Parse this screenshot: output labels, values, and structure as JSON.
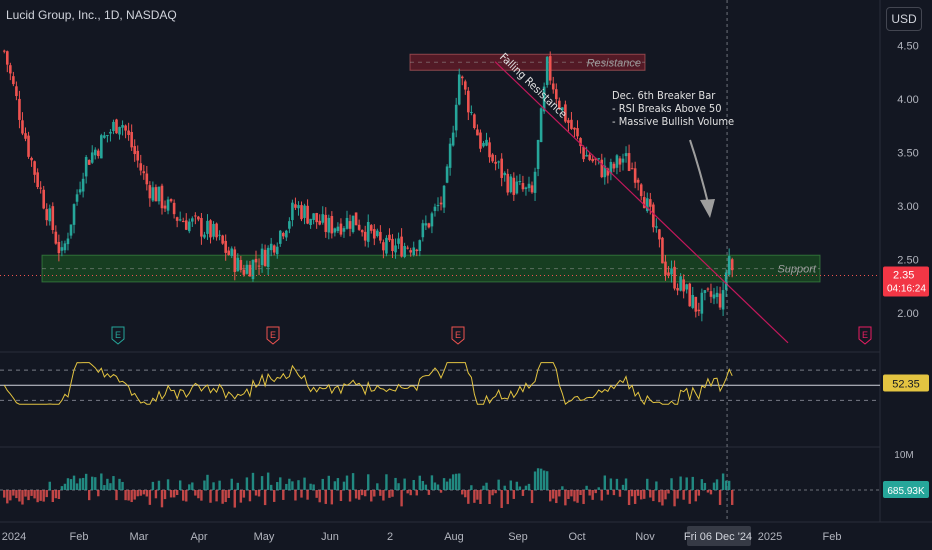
{
  "header": {
    "title": "Lucid Group, Inc., 1D, NASDAQ",
    "currency_button": "USD"
  },
  "colors": {
    "up": "#26a69a",
    "down": "#ef5350",
    "rsi": "#e3c441",
    "trend": "#c2185b",
    "support_fill": "#1b5e20",
    "resistance_fill": "#7f1d2a",
    "bg": "#131722"
  },
  "chart_data": {
    "type": "candlestick",
    "price_axis": {
      "ticks": [
        "4.50",
        "4.00",
        "3.50",
        "3.00",
        "2.50",
        "2.00"
      ],
      "ylim": [
        1.7,
        4.6
      ]
    },
    "last_price_label": "2.35",
    "countdown_label": "04:16:24",
    "rsi_value_label": "52.35",
    "volume_value_label": "685.93K",
    "volume_axis_label": "10M",
    "x_axis_labels": [
      "2024",
      "Feb",
      "Mar",
      "Apr",
      "May",
      "Jun",
      "2",
      "Aug",
      "Sep",
      "Oct",
      "Nov",
      "Fri 06 Dec '24",
      "2025",
      "Feb"
    ],
    "zones": [
      {
        "label": "Resistance",
        "low": 4.27,
        "high": 4.42
      },
      {
        "label": "Support",
        "low": 2.29,
        "high": 2.54
      }
    ],
    "trendline": {
      "label": "Falling Resistance",
      "from": [
        "Aug 19",
        4.35
      ],
      "to": [
        "Jan 2025",
        1.72
      ]
    },
    "annotation": [
      "Dec. 6th Breaker Bar",
      "- RSI Breaks Above 50",
      "- Massive Bullish Volume"
    ],
    "earnings_markers": [
      "E",
      "E",
      "E",
      "E"
    ],
    "price_keypoints": [
      {
        "date": "Jan 2",
        "close": 4.45
      },
      {
        "date": "Jan 15",
        "close": 3.4
      },
      {
        "date": "Jan 29",
        "close": 2.52
      },
      {
        "date": "Feb 9",
        "close": 3.4
      },
      {
        "date": "Feb 26",
        "close": 3.82
      },
      {
        "date": "Mar 8",
        "close": 3.2
      },
      {
        "date": "Mar 22",
        "close": 2.9
      },
      {
        "date": "Apr 8",
        "close": 2.75
      },
      {
        "date": "Apr 22",
        "close": 2.4
      },
      {
        "date": "May 3",
        "close": 2.55
      },
      {
        "date": "May 17",
        "close": 3.0
      },
      {
        "date": "May 31",
        "close": 2.8
      },
      {
        "date": "Jun 14",
        "close": 2.88
      },
      {
        "date": "Jun 28",
        "close": 2.6
      },
      {
        "date": "Jul 12",
        "close": 2.65
      },
      {
        "date": "Jul 26",
        "close": 3.1
      },
      {
        "date": "Aug 2",
        "close": 4.25
      },
      {
        "date": "Aug 12",
        "close": 3.6
      },
      {
        "date": "Aug 26",
        "close": 3.2
      },
      {
        "date": "Sep 6",
        "close": 3.1
      },
      {
        "date": "Sep 13",
        "close": 4.3
      },
      {
        "date": "Sep 20",
        "close": 3.9
      },
      {
        "date": "Sep 30",
        "close": 3.5
      },
      {
        "date": "Oct 11",
        "close": 3.3
      },
      {
        "date": "Oct 18",
        "close": 3.45
      },
      {
        "date": "Oct 25",
        "close": 3.3
      },
      {
        "date": "Nov 1",
        "close": 2.85
      },
      {
        "date": "Nov 8",
        "close": 2.4
      },
      {
        "date": "Nov 15",
        "close": 2.25
      },
      {
        "date": "Nov 22",
        "close": 2.05
      },
      {
        "date": "Nov 29",
        "close": 2.15
      },
      {
        "date": "Dec 5",
        "close": 2.12
      },
      {
        "date": "Dec 6",
        "close": 2.62
      },
      {
        "date": "Dec 9",
        "close": 2.35
      }
    ]
  }
}
